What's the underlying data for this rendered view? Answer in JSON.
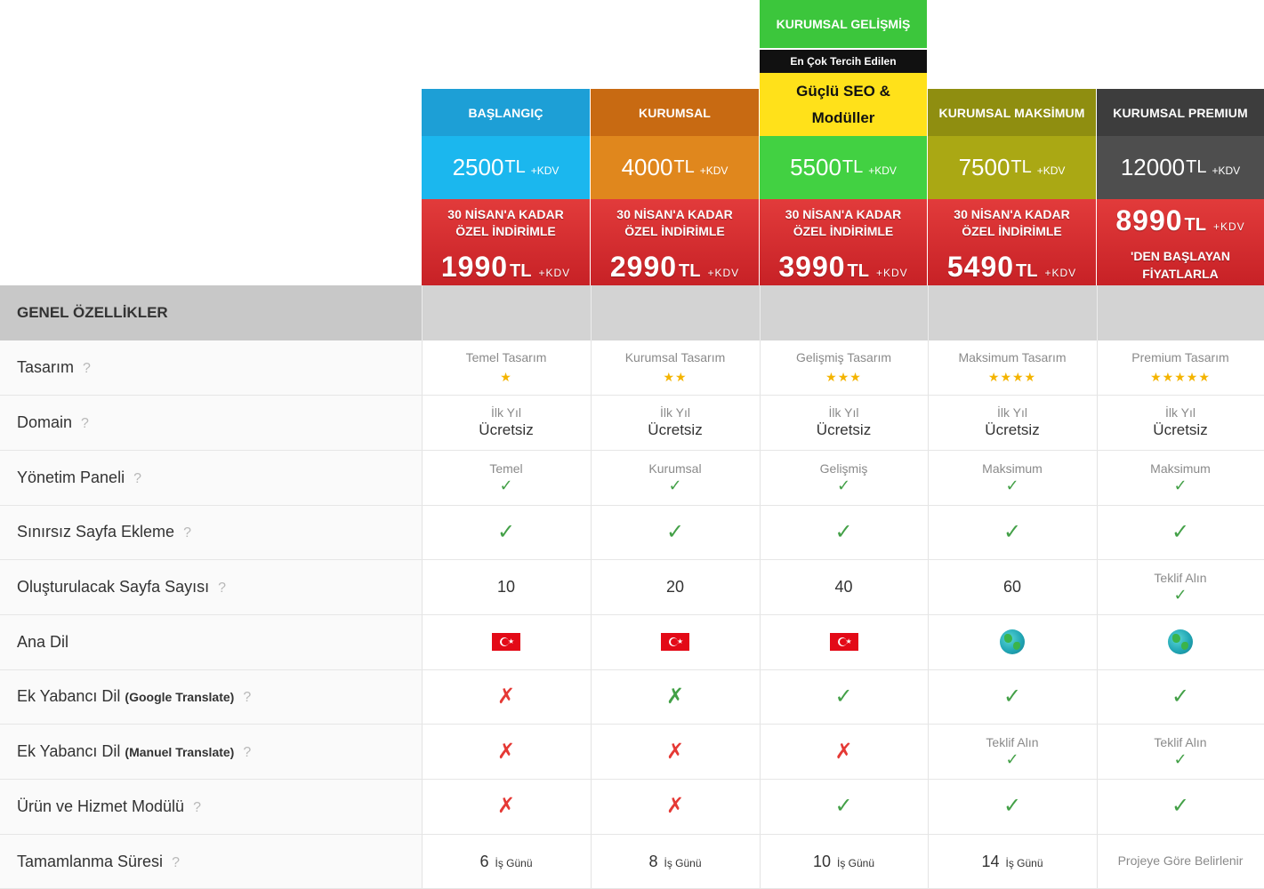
{
  "colors": {
    "baslangic_header": "#1d9fd6",
    "baslangic_price": "#1bb7ee",
    "kurumsal_header": "#c86a12",
    "kurumsal_price": "#e0871d",
    "gelismis_header": "#3cc63c",
    "gelismis_price": "#42d142",
    "maksimum_header": "#8f8e10",
    "maksimum_price": "#aaa814",
    "premium_header": "#3d3d3d",
    "premium_price": "#4e4e4e",
    "discount": "#d42c30",
    "featured_banner": "#ffe11a"
  },
  "featured": {
    "title": "KURUMSAL GELİŞMİŞ",
    "tag": "En Çok Tercih Edilen",
    "banner_line1": "Güçlü SEO &",
    "banner_line2": "Modüller"
  },
  "plans": [
    {
      "name": "BAŞLANGIÇ",
      "price": "2500",
      "currency": "TL",
      "kdv": "+KDV",
      "disc_line1": "30 NİSAN'A KADAR",
      "disc_line2": "ÖZEL İNDİRİMLE",
      "disc_price": "1990",
      "disc_currency": "TL",
      "disc_kdv": "+KDV"
    },
    {
      "name": "KURUMSAL",
      "price": "4000",
      "currency": "TL",
      "kdv": "+KDV",
      "disc_line1": "30 NİSAN'A KADAR",
      "disc_line2": "ÖZEL İNDİRİMLE",
      "disc_price": "2990",
      "disc_currency": "TL",
      "disc_kdv": "+KDV"
    },
    {
      "name": "",
      "price": "5500",
      "currency": "TL",
      "kdv": "+KDV",
      "disc_line1": "30 NİSAN'A KADAR",
      "disc_line2": "ÖZEL İNDİRİMLE",
      "disc_price": "3990",
      "disc_currency": "TL",
      "disc_kdv": "+KDV"
    },
    {
      "name": "KURUMSAL MAKSİMUM",
      "price": "7500",
      "currency": "TL",
      "kdv": "+KDV",
      "disc_line1": "30 NİSAN'A KADAR",
      "disc_line2": "ÖZEL İNDİRİMLE",
      "disc_price": "5490",
      "disc_currency": "TL",
      "disc_kdv": "+KDV"
    },
    {
      "name": "KURUMSAL PREMIUM",
      "price": "12000",
      "currency": "TL",
      "kdv": "+KDV",
      "disc_price": "8990",
      "disc_currency": "TL",
      "disc_kdv": "+KDV",
      "disc_line1": "'DEN BAŞLAYAN",
      "disc_line2": "FİYATLARLA"
    }
  ],
  "section_header": "GENEL ÖZELLİKLER",
  "help_icon": "?",
  "rows": {
    "tasarim": {
      "label": "Tasarım",
      "values": [
        "Temel Tasarım",
        "Kurumsal Tasarım",
        "Gelişmiş Tasarım",
        "Maksimum Tasarım",
        "Premium Tasarım"
      ],
      "stars": [
        "★",
        "★★",
        "★★★",
        "★★★★",
        "★★★★★"
      ],
      "rating": [
        1,
        2,
        3,
        4,
        5
      ]
    },
    "domain": {
      "label": "Domain",
      "sub": "İlk Yıl",
      "main": "Ücretsiz"
    },
    "panel": {
      "label": "Yönetim Paneli",
      "values": [
        "Temel",
        "Kurumsal",
        "Gelişmiş",
        "Maksimum",
        "Maksimum"
      ]
    },
    "sinirsiz": {
      "label": "Sınırsız Sayfa Ekleme"
    },
    "sayfa": {
      "label": "Oluşturulacak Sayfa Sayısı",
      "values": [
        "10",
        "20",
        "40",
        "60"
      ],
      "premium": "Teklif Alın"
    },
    "dil": {
      "label": "Ana Dil",
      "icons": [
        "turkey-flag-icon",
        "turkey-flag-icon",
        "turkey-flag-icon",
        "globe-icon",
        "globe-icon"
      ]
    },
    "google": {
      "label": "Ek Yabancı Dil",
      "suffix": "(Google Translate)"
    },
    "manuel": {
      "label": "Ek Yabancı Dil",
      "suffix": "(Manuel Translate)",
      "offer": "Teklif Alın"
    },
    "urun": {
      "label": "Ürün ve Hizmet Modülü"
    },
    "sure": {
      "label": "Tamamlanma Süresi",
      "days": [
        "6",
        "8",
        "10",
        "14"
      ],
      "unit": "İş Günü",
      "premium": "Projeye Göre Belirlenir"
    }
  },
  "symbols": {
    "check": "✓",
    "cross": "✗",
    "star": "★"
  }
}
